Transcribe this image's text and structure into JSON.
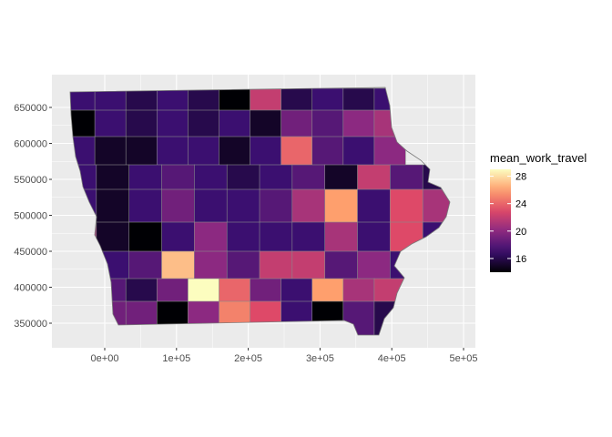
{
  "chart_data": {
    "type": "choropleth-map",
    "region": "Iowa counties",
    "fill_variable": "mean_work_travel",
    "legend": {
      "title": "mean_work_travel",
      "ticks": [
        "16",
        "20",
        "24",
        "28"
      ],
      "range": [
        14,
        29
      ],
      "placement": "right",
      "palette": [
        "#000004",
        "#3b0f70",
        "#8c2981",
        "#de4968",
        "#fe9f6d",
        "#fcfdbf"
      ]
    },
    "x_axis": {
      "ticks": [
        "0e+00",
        "1e+05",
        "2e+05",
        "3e+05",
        "4e+05",
        "5e+05"
      ],
      "tick_values": [
        0,
        100000,
        200000,
        300000,
        400000,
        500000
      ],
      "range": [
        -60000,
        520000
      ]
    },
    "y_axis": {
      "ticks": [
        "350000",
        "400000",
        "450000",
        "500000",
        "550000",
        "600000",
        "650000"
      ],
      "tick_values": [
        350000,
        400000,
        450000,
        500000,
        550000,
        600000,
        650000
      ],
      "range": [
        315000,
        690000
      ]
    },
    "grid": true,
    "panel_background": "#ebebeb",
    "rows": [
      [
        17,
        17,
        16,
        17,
        16,
        14,
        22,
        16,
        17,
        16,
        17
      ],
      [
        14,
        17,
        16,
        17,
        16,
        17,
        15,
        19,
        18,
        20,
        21
      ],
      [
        17,
        15,
        15,
        17,
        17,
        15,
        17,
        24,
        18,
        17,
        20
      ],
      [
        17,
        15,
        17,
        18,
        17,
        16,
        17,
        18,
        15,
        22,
        18,
        16
      ],
      [
        17,
        15,
        17,
        19,
        17,
        17,
        18,
        21,
        26,
        17,
        23,
        21
      ],
      [
        21,
        15,
        14,
        17,
        20,
        17,
        17,
        17,
        21,
        17,
        23,
        17
      ],
      [
        27,
        17,
        18,
        27,
        20,
        18,
        22,
        22,
        18,
        20,
        17,
        16
      ],
      [
        18,
        18,
        16,
        19,
        29,
        24,
        19,
        17,
        26,
        21,
        22
      ],
      [
        22,
        19,
        19,
        14,
        20,
        25,
        23,
        17,
        14,
        18,
        16
      ],
      [
        21,
        15,
        19,
        18,
        20,
        25,
        19,
        22,
        21,
        17
      ]
    ]
  }
}
